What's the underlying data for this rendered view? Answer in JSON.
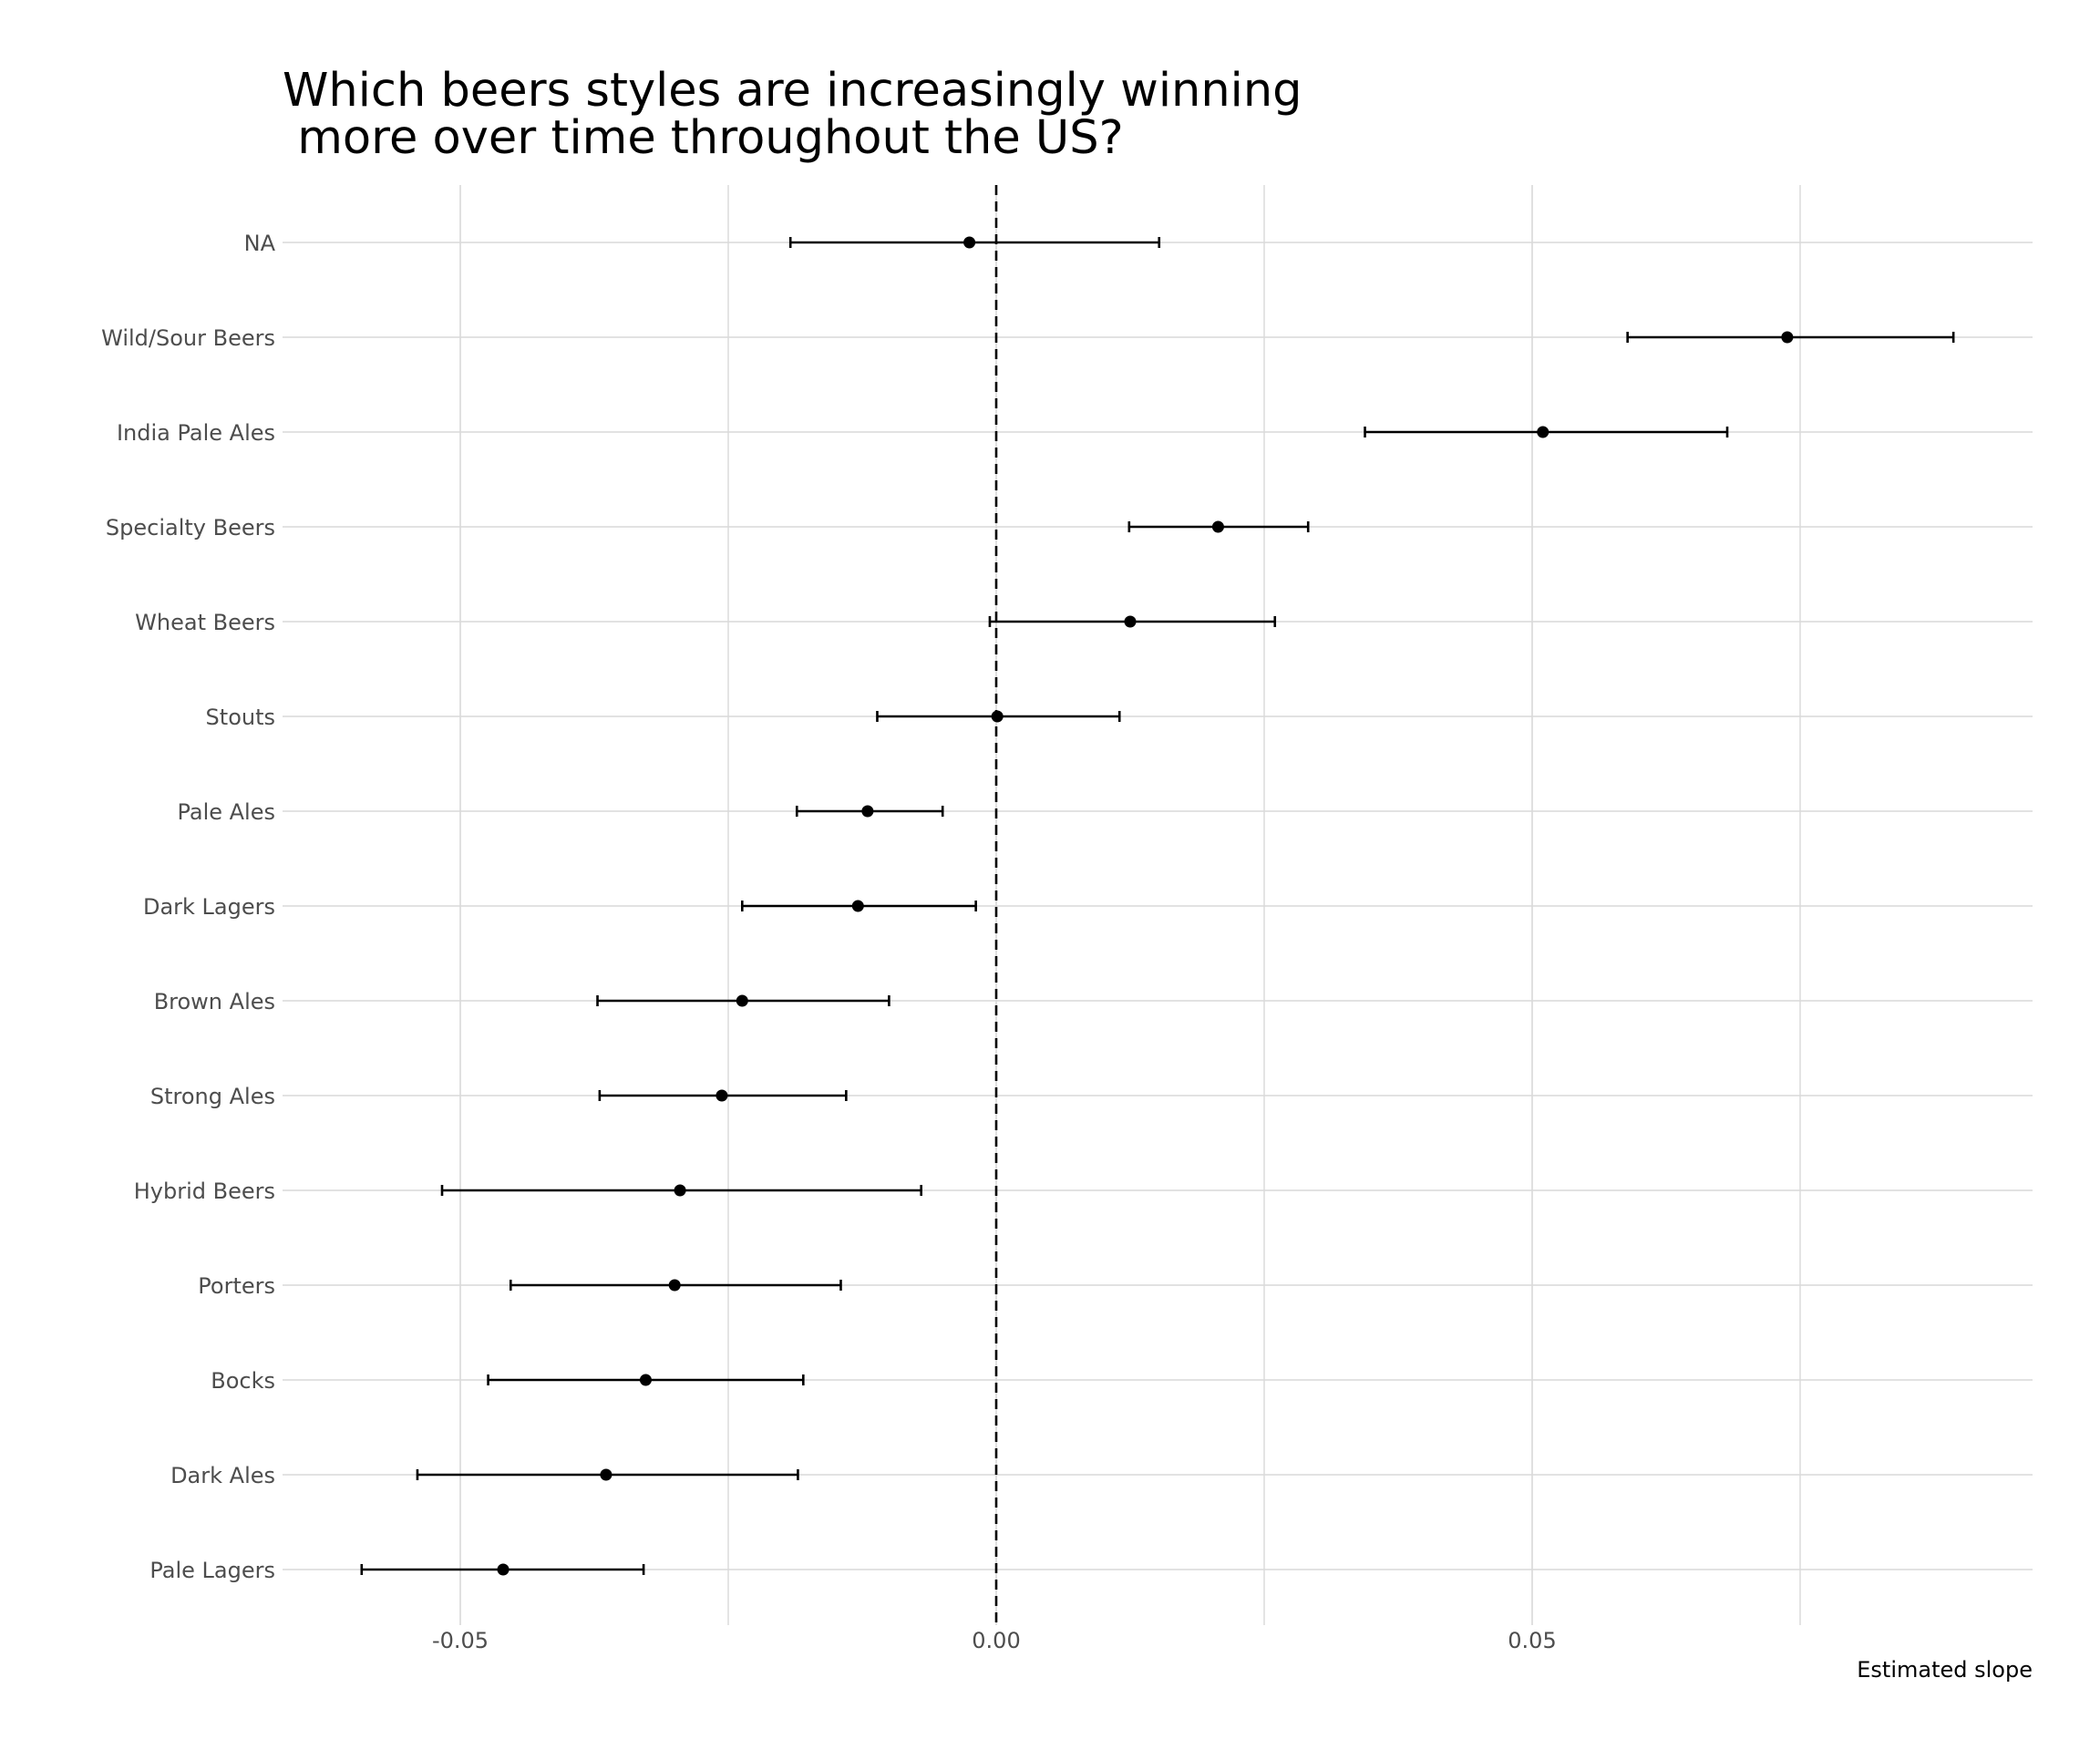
{
  "chart_data": {
    "type": "errorbar",
    "title_lines": [
      "Which beers styles are increasingly winning",
      " more over time throughout the US?"
    ],
    "xlabel": "Estimated slope",
    "ylabel": "",
    "xlim": [
      -0.066,
      0.097
    ],
    "x_ticks": [
      -0.05,
      0.0,
      0.05
    ],
    "x_tick_labels": [
      "-0.05",
      "0.00",
      "0.05"
    ],
    "x_minor_grid": [
      -0.025,
      0.025,
      0.075
    ],
    "reference_line_x": 0,
    "reference_line_style": "dashed",
    "grid": true,
    "legend": "none",
    "point_color": "#000000",
    "gridline_color": "#d9d9d9",
    "categories": [
      "NA",
      "Wild/Sour Beers",
      "India Pale Ales",
      "Specialty Beers",
      "Wheat Beers",
      "Stouts",
      "Pale Ales",
      "Dark Lagers",
      "Brown Ales",
      "Strong Ales",
      "Hybrid Beers",
      "Porters",
      "Bocks",
      "Dark Ales",
      "Pale Lagers"
    ],
    "estimates": [
      -0.0025,
      0.0738,
      0.051,
      0.0207,
      0.0125,
      0.0001,
      -0.012,
      -0.0129,
      -0.0237,
      -0.0256,
      -0.0295,
      -0.03,
      -0.0327,
      -0.0364,
      -0.046
    ],
    "lower": [
      -0.0192,
      0.0589,
      0.0344,
      0.0124,
      -0.0006,
      -0.0111,
      -0.0186,
      -0.0237,
      -0.0372,
      -0.037,
      -0.0517,
      -0.0453,
      -0.0474,
      -0.054,
      -0.0592
    ],
    "upper": [
      0.0152,
      0.0893,
      0.0682,
      0.0291,
      0.026,
      0.0115,
      -0.005,
      -0.0019,
      -0.01,
      -0.014,
      -0.007,
      -0.0145,
      -0.018,
      -0.0185,
      -0.0329
    ]
  }
}
